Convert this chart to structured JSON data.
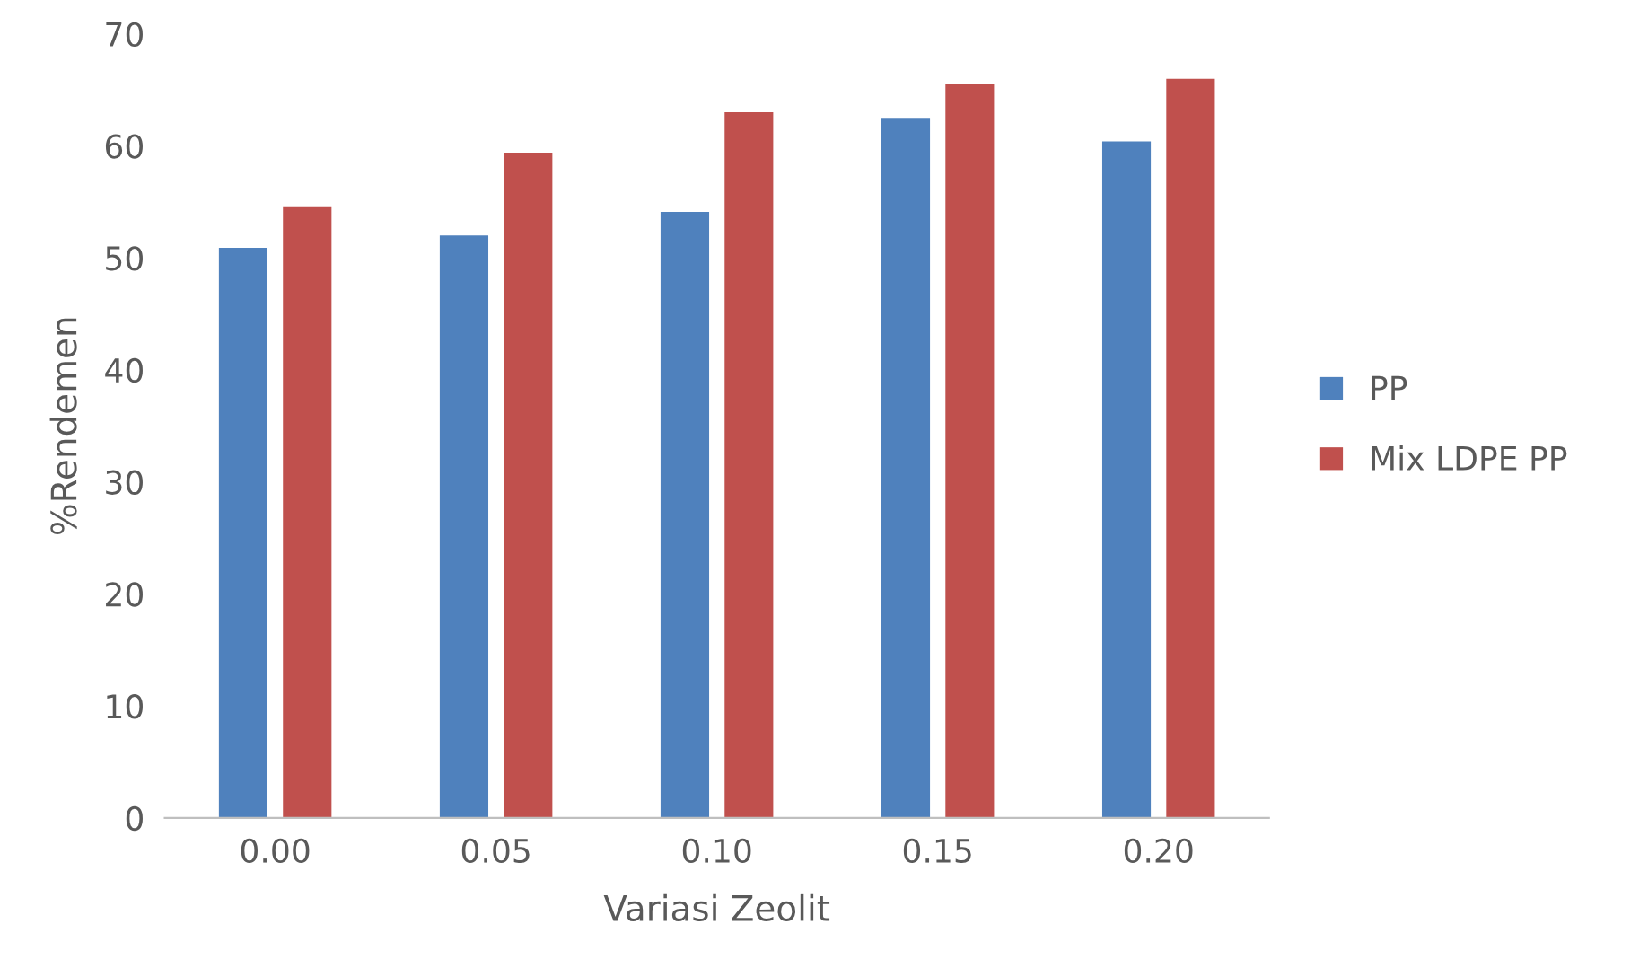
{
  "chart_data": {
    "type": "bar",
    "xlabel": "Variasi Zeolit",
    "ylabel": "%Rendemen",
    "categories": [
      "0.00",
      "0.05",
      "0.10",
      "0.15",
      "0.20"
    ],
    "series": [
      {
        "name": "PP",
        "color": "#4f81bd",
        "values": [
          50.9,
          52.0,
          54.1,
          62.5,
          60.4
        ]
      },
      {
        "name": "Mix LDPE PP",
        "color": "#c0504d",
        "values": [
          54.6,
          59.4,
          63.0,
          65.5,
          66.0
        ]
      }
    ],
    "ylim": [
      0,
      70
    ],
    "yticks": [
      0,
      10,
      20,
      30,
      40,
      50,
      60,
      70
    ],
    "grid": false,
    "legend": "right"
  }
}
